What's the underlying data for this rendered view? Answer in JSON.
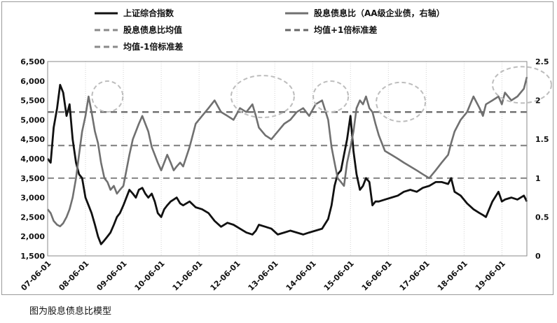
{
  "caption": "图为股息债息比模型",
  "chart_data": {
    "type": "line",
    "x_ticks": [
      "07-06-01",
      "08-06-01",
      "09-06-01",
      "10-06-01",
      "11-06-01",
      "12-06-01",
      "13-06-01",
      "14-06-01",
      "15-06-01",
      "16-06-01",
      "17-06-01",
      "18-06-01",
      "19-06-01"
    ],
    "y_left": {
      "min": 1500,
      "max": 6500,
      "ticks": [
        "1,500",
        "2,000",
        "2,500",
        "3,000",
        "3,500",
        "4,000",
        "4,500",
        "5,000",
        "5,500",
        "6,000",
        "6,500"
      ]
    },
    "y_right": {
      "min": 0,
      "max": 2.5,
      "ticks": [
        "0",
        "0.5",
        "1",
        "1.5",
        "2",
        "2.5"
      ]
    },
    "legend": {
      "shanghai": "上证综合指数",
      "ratio": "股息债息比（AA级企业债，右轴）",
      "mean": "股息债息比均值",
      "plus1": "均值+1倍标准差",
      "minus1": "均值-1倍标准差"
    },
    "colors": {
      "shanghai": "#111111",
      "ratio": "#707070",
      "mean": "#8a8a8a",
      "plus1": "#666666",
      "minus1": "#8a8a8a",
      "ellipse": "#bdbdbd"
    },
    "reference_lines": {
      "mean": 1.42,
      "plus1": 1.85,
      "minus1": 1.0
    },
    "series": [
      {
        "name": "上证综合指数",
        "axis": "left",
        "x": [
          2007.42,
          2007.5,
          2007.58,
          2007.67,
          2007.75,
          2007.83,
          2007.92,
          2008.0,
          2008.08,
          2008.17,
          2008.25,
          2008.33,
          2008.42,
          2008.5,
          2008.58,
          2008.67,
          2008.75,
          2008.83,
          2008.92,
          2009.0,
          2009.08,
          2009.17,
          2009.25,
          2009.33,
          2009.42,
          2009.5,
          2009.58,
          2009.67,
          2009.75,
          2009.83,
          2009.92,
          2010.0,
          2010.08,
          2010.17,
          2010.25,
          2010.33,
          2010.42,
          2010.5,
          2010.58,
          2010.67,
          2010.75,
          2010.83,
          2010.92,
          2011.0,
          2011.17,
          2011.33,
          2011.5,
          2011.67,
          2011.83,
          2012.0,
          2012.17,
          2012.33,
          2012.5,
          2012.67,
          2012.83,
          2012.92,
          2013.0,
          2013.17,
          2013.33,
          2013.5,
          2013.67,
          2013.83,
          2014.0,
          2014.17,
          2014.33,
          2014.5,
          2014.67,
          2014.83,
          2014.92,
          2015.0,
          2015.08,
          2015.17,
          2015.25,
          2015.33,
          2015.42,
          2015.5,
          2015.58,
          2015.67,
          2015.75,
          2015.83,
          2015.92,
          2016.0,
          2016.08,
          2016.17,
          2016.33,
          2016.5,
          2016.67,
          2016.83,
          2017.0,
          2017.17,
          2017.33,
          2017.5,
          2017.67,
          2017.83,
          2018.0,
          2018.08,
          2018.17,
          2018.33,
          2018.5,
          2018.67,
          2018.83,
          2018.92,
          2019.0,
          2019.17,
          2019.33,
          2019.42,
          2019.5,
          2019.67,
          2019.83,
          2020.0,
          2020.08
        ],
        "y": [
          4000,
          3900,
          4800,
          5300,
          5900,
          5700,
          5100,
          5400,
          4500,
          3900,
          3600,
          3500,
          3000,
          2800,
          2600,
          2300,
          2000,
          1800,
          1900,
          2000,
          2100,
          2300,
          2500,
          2600,
          2800,
          3000,
          3200,
          3100,
          3000,
          3200,
          3250,
          3100,
          3000,
          3100,
          2900,
          2600,
          2500,
          2700,
          2800,
          2900,
          2950,
          3000,
          2850,
          2800,
          2900,
          2750,
          2700,
          2600,
          2400,
          2250,
          2350,
          2300,
          2200,
          2100,
          2050,
          2150,
          2300,
          2250,
          2200,
          2050,
          2100,
          2150,
          2100,
          2050,
          2100,
          2150,
          2200,
          2450,
          2800,
          3300,
          3600,
          3700,
          4100,
          4500,
          5100,
          4200,
          3600,
          3200,
          3300,
          3500,
          3400,
          2800,
          2900,
          2900,
          2950,
          3000,
          3050,
          3150,
          3200,
          3150,
          3250,
          3300,
          3400,
          3400,
          3350,
          3500,
          3150,
          3050,
          2850,
          2700,
          2600,
          2550,
          2500,
          2900,
          3150,
          2900,
          2950,
          3000,
          2950,
          3050,
          2900
        ]
      },
      {
        "name": "股息债息比（AA级企业债，右轴）",
        "axis": "right",
        "x": [
          2007.42,
          2007.5,
          2007.58,
          2007.67,
          2007.75,
          2007.83,
          2007.92,
          2008.0,
          2008.08,
          2008.17,
          2008.25,
          2008.33,
          2008.42,
          2008.5,
          2008.58,
          2008.67,
          2008.75,
          2008.83,
          2008.92,
          2009.0,
          2009.08,
          2009.17,
          2009.25,
          2009.33,
          2009.42,
          2009.5,
          2009.58,
          2009.67,
          2009.75,
          2009.83,
          2009.92,
          2010.0,
          2010.08,
          2010.17,
          2010.25,
          2010.33,
          2010.42,
          2010.5,
          2010.58,
          2010.67,
          2010.75,
          2010.83,
          2010.92,
          2011.0,
          2011.17,
          2011.33,
          2011.5,
          2011.67,
          2011.83,
          2012.0,
          2012.17,
          2012.33,
          2012.5,
          2012.67,
          2012.83,
          2012.92,
          2013.0,
          2013.17,
          2013.33,
          2013.5,
          2013.67,
          2013.83,
          2014.0,
          2014.17,
          2014.33,
          2014.5,
          2014.67,
          2014.83,
          2014.92,
          2015.0,
          2015.08,
          2015.17,
          2015.25,
          2015.33,
          2015.42,
          2015.5,
          2015.58,
          2015.67,
          2015.75,
          2015.83,
          2015.92,
          2016.0,
          2016.08,
          2016.17,
          2016.33,
          2016.5,
          2016.67,
          2016.83,
          2017.0,
          2017.17,
          2017.33,
          2017.5,
          2017.67,
          2017.83,
          2018.0,
          2018.08,
          2018.17,
          2018.33,
          2018.5,
          2018.67,
          2018.83,
          2018.92,
          2019.0,
          2019.17,
          2019.33,
          2019.42,
          2019.5,
          2019.67,
          2019.83,
          2020.0,
          2020.08
        ],
        "y": [
          0.6,
          0.55,
          0.45,
          0.4,
          0.38,
          0.42,
          0.5,
          0.6,
          0.75,
          1.0,
          1.3,
          1.6,
          1.8,
          2.05,
          1.85,
          1.6,
          1.45,
          1.2,
          1.0,
          0.95,
          0.85,
          0.9,
          0.8,
          0.85,
          0.9,
          1.1,
          1.3,
          1.5,
          1.6,
          1.7,
          1.8,
          1.7,
          1.6,
          1.4,
          1.3,
          1.2,
          1.1,
          1.2,
          1.3,
          1.2,
          1.1,
          1.15,
          1.2,
          1.15,
          1.4,
          1.7,
          1.8,
          1.9,
          2.0,
          1.85,
          1.8,
          1.75,
          1.9,
          1.85,
          1.95,
          1.8,
          1.65,
          1.55,
          1.5,
          1.6,
          1.7,
          1.75,
          1.85,
          1.9,
          1.8,
          1.95,
          2.0,
          1.75,
          1.4,
          1.2,
          1.0,
          0.95,
          0.9,
          1.2,
          1.4,
          1.6,
          1.9,
          2.0,
          1.95,
          2.05,
          1.9,
          1.85,
          1.7,
          1.55,
          1.35,
          1.3,
          1.25,
          1.2,
          1.15,
          1.1,
          1.05,
          1.0,
          1.1,
          1.2,
          1.3,
          1.45,
          1.6,
          1.75,
          1.85,
          2.05,
          1.9,
          1.8,
          1.95,
          2.0,
          2.05,
          1.95,
          2.1,
          2.0,
          2.05,
          2.15,
          2.3
        ]
      }
    ]
  }
}
